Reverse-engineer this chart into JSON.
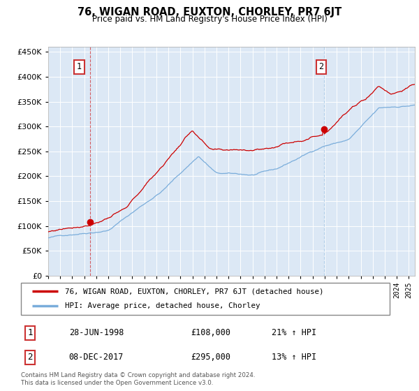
{
  "title": "76, WIGAN ROAD, EUXTON, CHORLEY, PR7 6JT",
  "subtitle": "Price paid vs. HM Land Registry's House Price Index (HPI)",
  "legend_line1": "76, WIGAN ROAD, EUXTON, CHORLEY, PR7 6JT (detached house)",
  "legend_line2": "HPI: Average price, detached house, Chorley",
  "sale1_x": 1998.49,
  "sale1_y": 108000,
  "sale2_x": 2017.92,
  "sale2_y": 295000,
  "table_row1": {
    "num": "1",
    "date": "28-JUN-1998",
    "price": "£108,000",
    "hpi": "21% ↑ HPI"
  },
  "table_row2": {
    "num": "2",
    "date": "08-DEC-2017",
    "price": "£295,000",
    "hpi": "13% ↑ HPI"
  },
  "footer": "Contains HM Land Registry data © Crown copyright and database right 2024.\nThis data is licensed under the Open Government Licence v3.0.",
  "sale_color": "#cc0000",
  "hpi_color": "#7aaddb",
  "vline1_color": "#cc0000",
  "vline2_color": "#7aaddb",
  "plot_bg": "#dce8f5",
  "ylim": [
    0,
    460000
  ],
  "yticks": [
    0,
    50000,
    100000,
    150000,
    200000,
    250000,
    300000,
    350000,
    400000,
    450000
  ],
  "xlim_start": 1995.0,
  "xlim_end": 2025.5,
  "seed_hpi": 42,
  "seed_sale": 77
}
